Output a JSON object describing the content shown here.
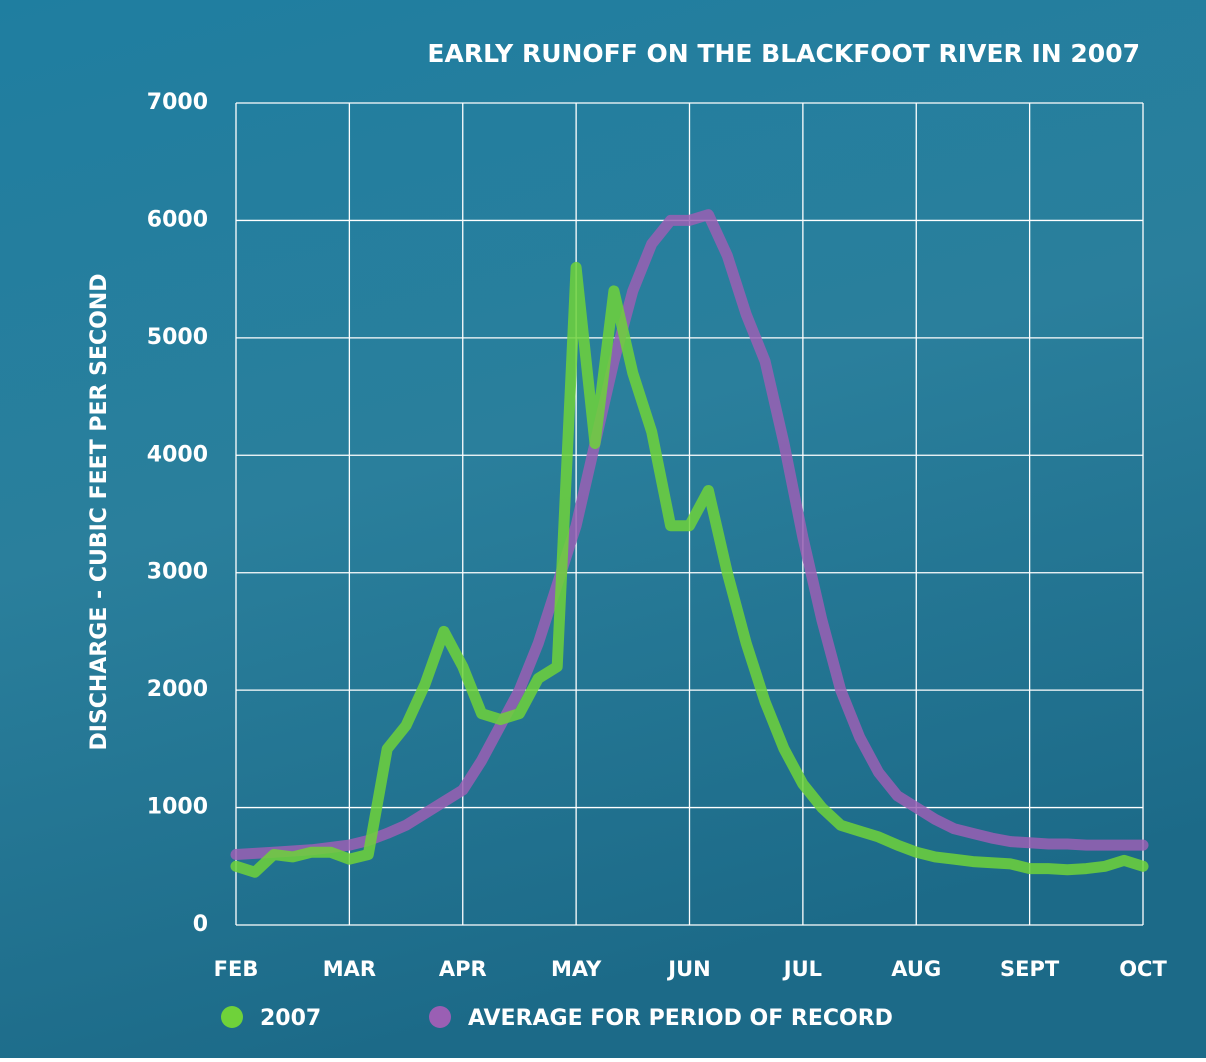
{
  "chart_data": {
    "type": "line",
    "title": "EARLY RUNOFF ON THE BLACKFOOT RIVER IN 2007",
    "y_label": "DISCHARGE - CUBIC FEET PER SECOND",
    "categories": [
      "FEB",
      null,
      null,
      null,
      null,
      null,
      "MAR",
      null,
      null,
      null,
      null,
      null,
      "APR",
      null,
      null,
      null,
      null,
      null,
      "MAY",
      null,
      null,
      null,
      null,
      null,
      "JUN",
      null,
      null,
      null,
      null,
      null,
      "JUL",
      null,
      null,
      null,
      null,
      null,
      "AUG",
      null,
      null,
      null,
      null,
      null,
      "SEPT",
      null,
      null,
      null,
      null,
      null,
      "OCT"
    ],
    "series": [
      {
        "name": "2007",
        "color": "#6fd23a",
        "values": [
          500,
          450,
          600,
          580,
          620,
          620,
          560,
          600,
          1500,
          1700,
          2050,
          2500,
          2200,
          1800,
          1750,
          1800,
          2100,
          2200,
          5600,
          4100,
          5400,
          4700,
          4200,
          3400,
          3400,
          3700,
          3000,
          2400,
          1900,
          1500,
          1200,
          1000,
          850,
          800,
          750,
          680,
          620,
          580,
          560,
          540,
          530,
          520,
          480,
          480,
          470,
          480,
          500,
          550,
          500
        ]
      },
      {
        "name": "AVERAGE FOR PERIOD OF RECORD",
        "color": "#9a5fb4",
        "values": [
          600,
          610,
          620,
          630,
          640,
          660,
          680,
          720,
          780,
          850,
          950,
          1050,
          1150,
          1400,
          1700,
          2000,
          2400,
          2900,
          3400,
          4100,
          4800,
          5400,
          5800,
          6000,
          6000,
          6050,
          5700,
          5200,
          4800,
          4100,
          3300,
          2600,
          2000,
          1600,
          1300,
          1100,
          1000,
          900,
          820,
          780,
          740,
          710,
          700,
          690,
          690,
          680,
          680,
          680,
          680
        ]
      }
    ],
    "ylim": [
      0,
      7000
    ],
    "yticks": [
      0,
      1000,
      2000,
      3000,
      4000,
      5000,
      6000,
      7000
    ],
    "grid": true
  }
}
